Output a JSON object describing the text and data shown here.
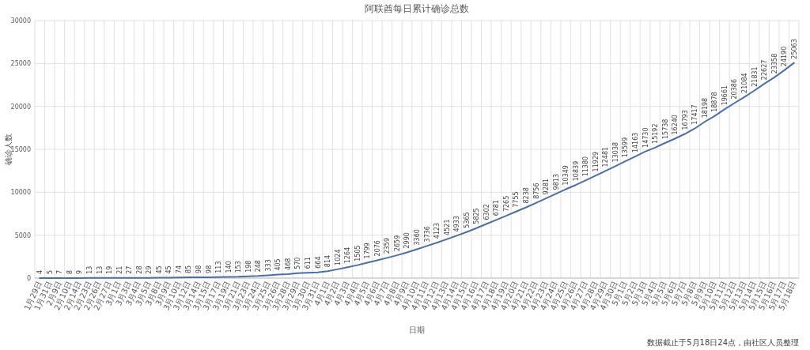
{
  "chart_data": {
    "type": "line",
    "title": "阿联酋每日累计确诊总数",
    "xlabel": "日期",
    "ylabel": "确诊人数",
    "categories": [
      "1月29日",
      "1月31日",
      "2月9日",
      "2月10日",
      "2月14日",
      "2月23日",
      "2月26日",
      "2月27日",
      "3月1日",
      "3月3日",
      "3月4日",
      "3月5日",
      "3月8日",
      "3月9日",
      "3月10日",
      "3月12日",
      "3月14日",
      "3月15日",
      "3月17日",
      "3月19日",
      "3月21日",
      "3月23日",
      "3月24日",
      "3月25日",
      "3月26日",
      "3月28日",
      "3月29日",
      "3月30日",
      "3月31日",
      "4月1日",
      "4月2日",
      "4月3日",
      "4月4日",
      "4月5日",
      "4月6日",
      "4月7日",
      "4月8日",
      "4月9日",
      "4月10日",
      "4月11日",
      "4月12日",
      "4月13日",
      "4月14日",
      "4月15日",
      "4月16日",
      "4月17日",
      "4月18日",
      "4月19日",
      "4月20日",
      "4月21日",
      "4月22日",
      "4月23日",
      "4月24日",
      "4月25日",
      "4月26日",
      "4月27日",
      "4月28日",
      "4月29日",
      "4月30日",
      "5月1日",
      "5月2日",
      "5月3日",
      "5月4日",
      "5月5日",
      "5月6日",
      "5月7日",
      "5月8日",
      "5月9日",
      "5月10日",
      "5月11日",
      "5月12日",
      "5月13日",
      "5月14日",
      "5月15日",
      "5月16日",
      "5月17日",
      "5月18日"
    ],
    "series": [
      {
        "color": "#4a6fa5",
        "values": [
          4,
          5,
          7,
          8,
          9,
          13,
          13,
          19,
          21,
          27,
          28,
          29,
          45,
          45,
          74,
          85,
          98,
          98,
          113,
          140,
          153,
          198,
          248,
          333,
          405,
          468,
          570,
          611,
          664,
          814,
          1024,
          1264,
          1505,
          1799,
          2076,
          2359,
          2659,
          2990,
          3360,
          3736,
          4123,
          4521,
          4933,
          5365,
          5825,
          6302,
          6781,
          7265,
          7755,
          8238,
          8756,
          9281,
          9813,
          10349,
          10839,
          11380,
          11929,
          12481,
          13038,
          13599,
          14163,
          14730,
          15192,
          15738,
          16240,
          16793,
          17417,
          18198,
          18878,
          19661,
          20386,
          21084,
          21831,
          22627,
          23358,
          24190,
          25063
        ]
      }
    ],
    "ylim": [
      0,
      30000
    ],
    "yticks": [
      0,
      5000,
      10000,
      15000,
      20000,
      25000,
      30000
    ],
    "grid": true,
    "data_labels": true,
    "marker": "none",
    "line_style": "solid",
    "annotations": [
      "数据截止于5月18日24点，由社区人员整理"
    ]
  }
}
